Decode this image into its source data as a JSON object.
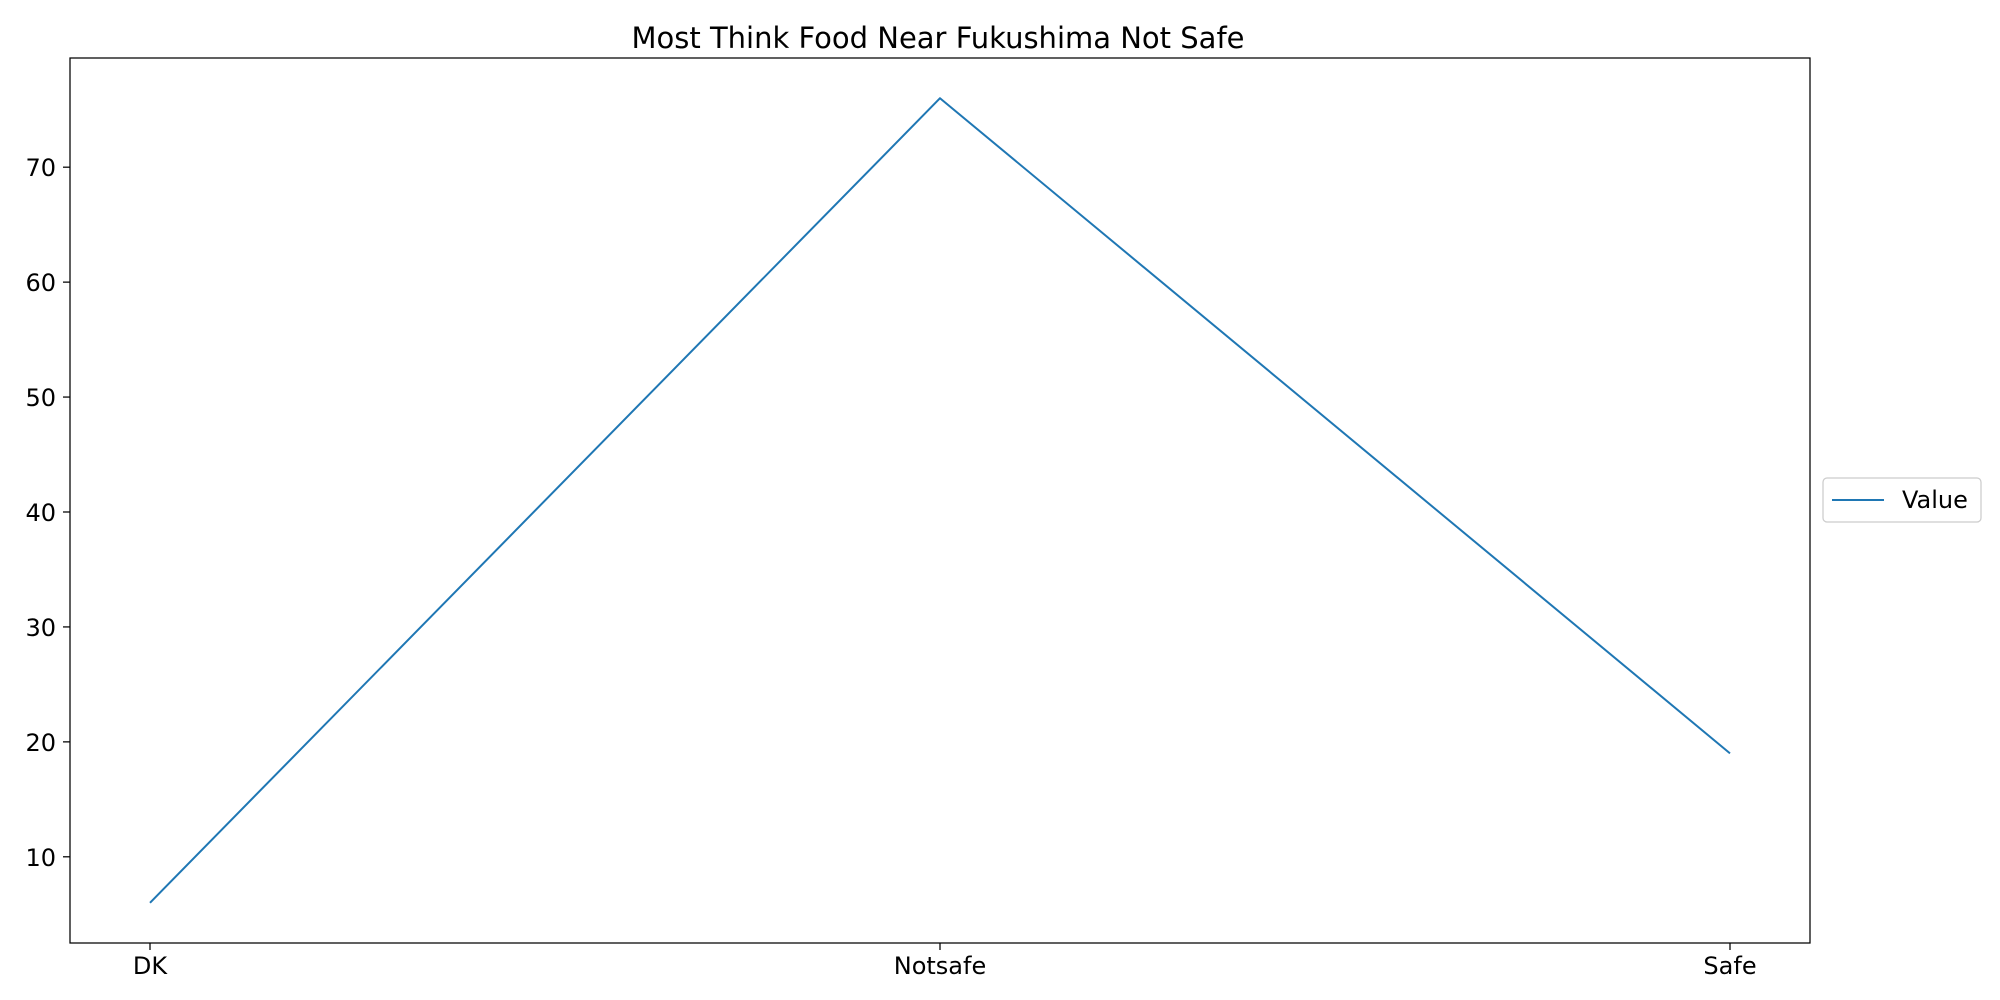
{
  "chart_data": {
    "type": "line",
    "title": "Most Think Food Near Fukushima Not Safe",
    "xlabel": "",
    "ylabel": "",
    "categories": [
      "DK",
      "Notsafe",
      "Safe"
    ],
    "series": [
      {
        "name": "Value",
        "values": [
          6,
          76,
          19
        ],
        "color": "#1f77b4"
      }
    ],
    "ylim": [
      2.5,
      79.5
    ],
    "yticks": [
      10,
      20,
      30,
      40,
      50,
      60,
      70
    ],
    "grid": false,
    "legend": {
      "placement": "right-center",
      "entries": [
        "Value"
      ]
    }
  }
}
